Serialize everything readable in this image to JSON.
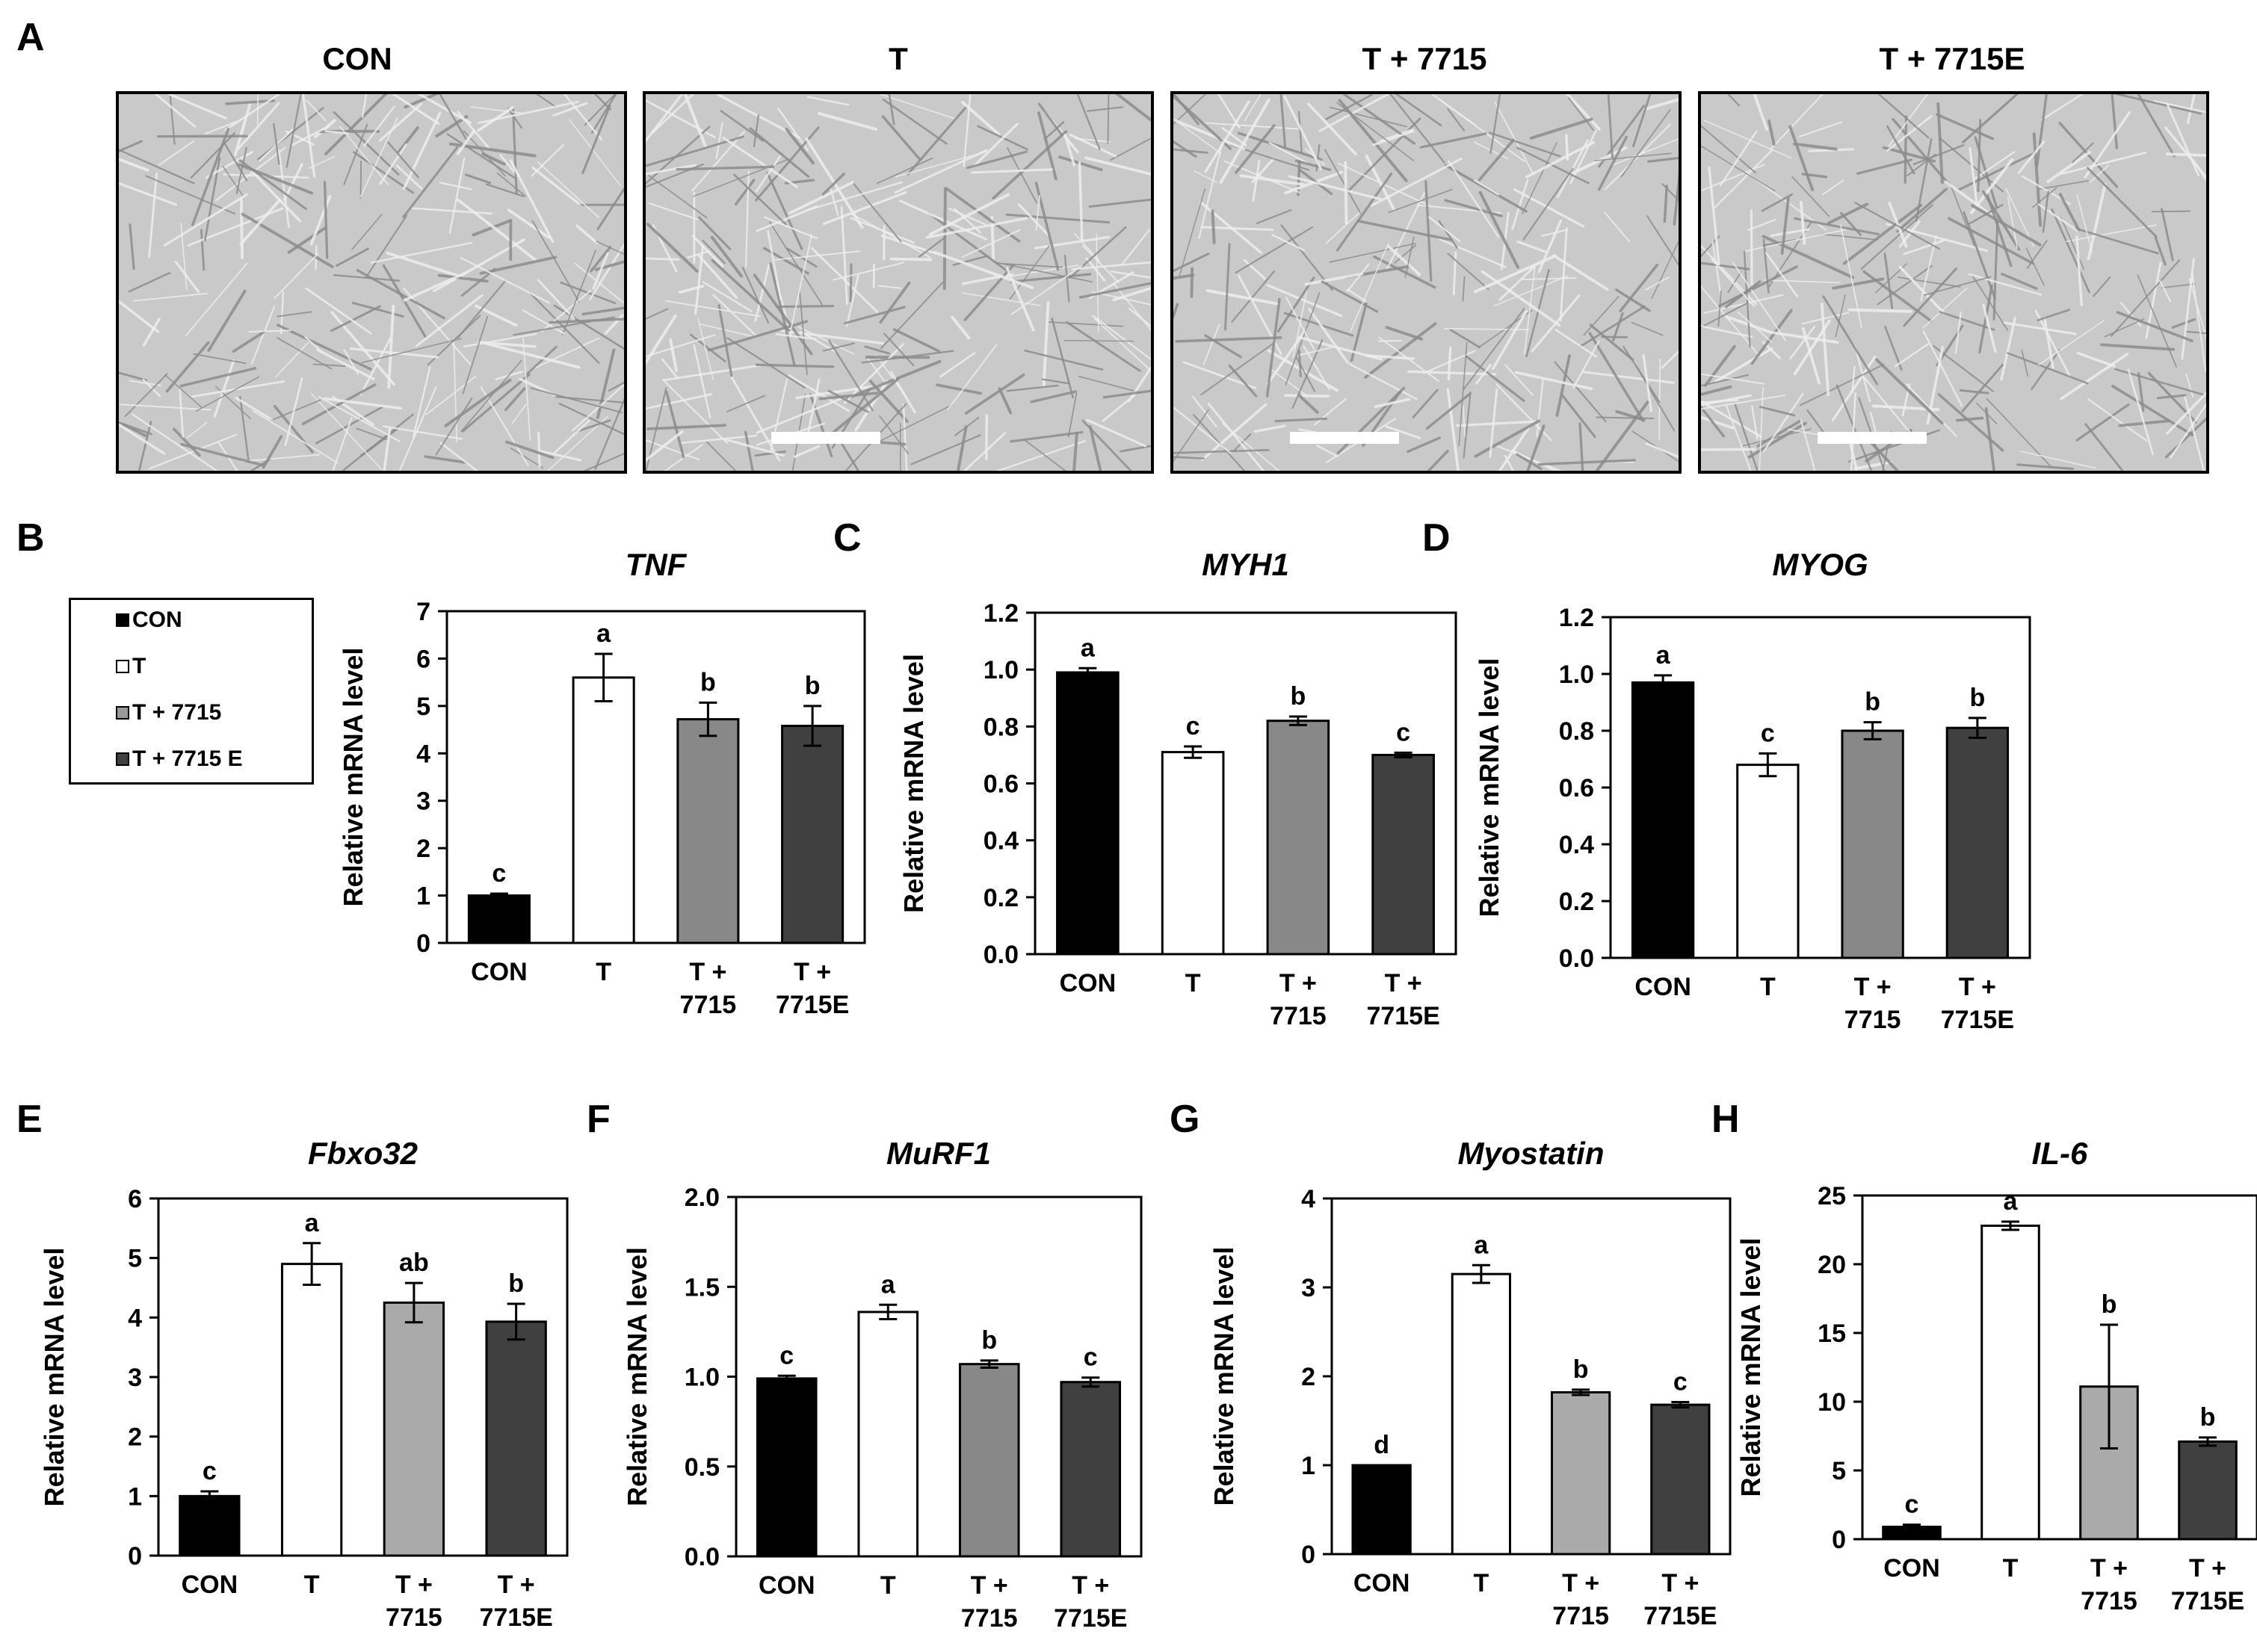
{
  "panels": {
    "A": "A",
    "B": "B",
    "C": "C",
    "D": "D",
    "E": "E",
    "F": "F",
    "G": "G",
    "H": "H"
  },
  "micrographs": [
    {
      "title": "CON",
      "has_scale_bar": false
    },
    {
      "title": "T",
      "has_scale_bar": true
    },
    {
      "title": "T + 7715",
      "has_scale_bar": true
    },
    {
      "title": "T + 7715E",
      "has_scale_bar": true
    }
  ],
  "legend": {
    "items": [
      {
        "label": "CON",
        "color": "#000000"
      },
      {
        "label": "T",
        "color": "#ffffff"
      },
      {
        "label": "T + 7715",
        "color": "#999999"
      },
      {
        "label": "T + 7715 E",
        "color": "#404040"
      }
    ]
  },
  "colors": {
    "con": "#000000",
    "t": "#ffffff",
    "t7715": "#999999",
    "t7715e": "#404040",
    "axis": "#000000",
    "micrograph_bg": "#c9c9c9"
  },
  "chart_data": [
    {
      "id": "TNF",
      "type": "bar",
      "title": "TNF",
      "ylabel": "Relative mRNA level",
      "categories": [
        [
          "CON"
        ],
        [
          "T"
        ],
        [
          "T +",
          "7715"
        ],
        [
          "T +",
          "7715E"
        ]
      ],
      "values": [
        1.0,
        5.6,
        4.72,
        4.58
      ],
      "errors": [
        0.04,
        0.5,
        0.35,
        0.42
      ],
      "letters": [
        "c",
        "a",
        "b",
        "b"
      ],
      "colors": [
        "#000000",
        "#ffffff",
        "#888888",
        "#404040"
      ],
      "ylim": [
        0,
        7
      ],
      "yticks": [
        "0",
        "1",
        "2",
        "3",
        "4",
        "5",
        "6",
        "7"
      ]
    },
    {
      "id": "MYH1",
      "type": "bar",
      "title": "MYH1",
      "ylabel": "Relative mRNA level",
      "categories": [
        [
          "CON"
        ],
        [
          "T"
        ],
        [
          "T +",
          "7715"
        ],
        [
          "T +",
          "7715E"
        ]
      ],
      "values": [
        0.99,
        0.71,
        0.82,
        0.7
      ],
      "errors": [
        0.015,
        0.02,
        0.015,
        0.008
      ],
      "letters": [
        "a",
        "c",
        "b",
        "c"
      ],
      "colors": [
        "#000000",
        "#ffffff",
        "#888888",
        "#404040"
      ],
      "ylim": [
        0,
        1.2
      ],
      "yticks": [
        "0.0",
        "0.2",
        "0.4",
        "0.6",
        "0.8",
        "1.0",
        "1.2"
      ]
    },
    {
      "id": "MYOG",
      "type": "bar",
      "title": "MYOG",
      "ylabel": "Relative mRNA level",
      "categories": [
        [
          "CON"
        ],
        [
          "T"
        ],
        [
          "T +",
          "7715"
        ],
        [
          "T +",
          "7715E"
        ]
      ],
      "values": [
        0.97,
        0.68,
        0.8,
        0.81
      ],
      "errors": [
        0.025,
        0.04,
        0.03,
        0.035
      ],
      "letters": [
        "a",
        "c",
        "b",
        "b"
      ],
      "colors": [
        "#000000",
        "#ffffff",
        "#888888",
        "#404040"
      ],
      "ylim": [
        0,
        1.2
      ],
      "yticks": [
        "0.0",
        "0.2",
        "0.4",
        "0.6",
        "0.8",
        "1.0",
        "1.2"
      ]
    },
    {
      "id": "Fbxo32",
      "type": "bar",
      "title": "Fbxo32",
      "ylabel": "Relative mRNA level",
      "categories": [
        [
          "CON"
        ],
        [
          "T"
        ],
        [
          "T +",
          "7715"
        ],
        [
          "T +",
          "7715E"
        ]
      ],
      "values": [
        1.0,
        4.9,
        4.25,
        3.93
      ],
      "errors": [
        0.08,
        0.35,
        0.33,
        0.3
      ],
      "letters": [
        "c",
        "a",
        "ab",
        "b"
      ],
      "colors": [
        "#000000",
        "#ffffff",
        "#aaaaaa",
        "#404040"
      ],
      "ylim": [
        0,
        6
      ],
      "yticks": [
        "0",
        "1",
        "2",
        "3",
        "4",
        "5",
        "6"
      ]
    },
    {
      "id": "MuRF1",
      "type": "bar",
      "title": "MuRF1",
      "ylabel": "Relative mRNA level",
      "categories": [
        [
          "CON"
        ],
        [
          "T"
        ],
        [
          "T +",
          "7715"
        ],
        [
          "T +",
          "7715E"
        ]
      ],
      "values": [
        0.99,
        1.36,
        1.07,
        0.97
      ],
      "errors": [
        0.015,
        0.04,
        0.02,
        0.025
      ],
      "letters": [
        "c",
        "a",
        "b",
        "c"
      ],
      "colors": [
        "#000000",
        "#ffffff",
        "#888888",
        "#404040"
      ],
      "ylim": [
        0,
        2.0
      ],
      "yticks": [
        "0.0",
        "0.5",
        "1.0",
        "1.5",
        "2.0"
      ]
    },
    {
      "id": "Myostatin",
      "type": "bar",
      "title": "Myostatin",
      "ylabel": "Relative mRNA level",
      "categories": [
        [
          "CON"
        ],
        [
          "T"
        ],
        [
          "T +",
          "7715"
        ],
        [
          "T +",
          "7715E"
        ]
      ],
      "values": [
        1.0,
        3.15,
        1.82,
        1.68
      ],
      "errors": [
        0.0,
        0.1,
        0.03,
        0.03
      ],
      "letters": [
        "d",
        "a",
        "b",
        "c"
      ],
      "colors": [
        "#000000",
        "#ffffff",
        "#aaaaaa",
        "#404040"
      ],
      "ylim": [
        0,
        4
      ],
      "yticks": [
        "0",
        "1",
        "2",
        "3",
        "4"
      ]
    },
    {
      "id": "IL-6",
      "type": "bar",
      "title": "IL-6",
      "ylabel": "Relative mRNA level",
      "categories": [
        [
          "CON"
        ],
        [
          "T"
        ],
        [
          "T +",
          "7715"
        ],
        [
          "T +",
          "7715E"
        ]
      ],
      "values": [
        0.9,
        22.8,
        11.1,
        7.1
      ],
      "errors": [
        0.15,
        0.3,
        4.5,
        0.3
      ],
      "letters": [
        "c",
        "a",
        "b",
        "b"
      ],
      "colors": [
        "#000000",
        "#ffffff",
        "#aaaaaa",
        "#404040"
      ],
      "ylim": [
        0,
        25
      ],
      "yticks": [
        "0",
        "5",
        "10",
        "15",
        "20",
        "25"
      ]
    }
  ]
}
